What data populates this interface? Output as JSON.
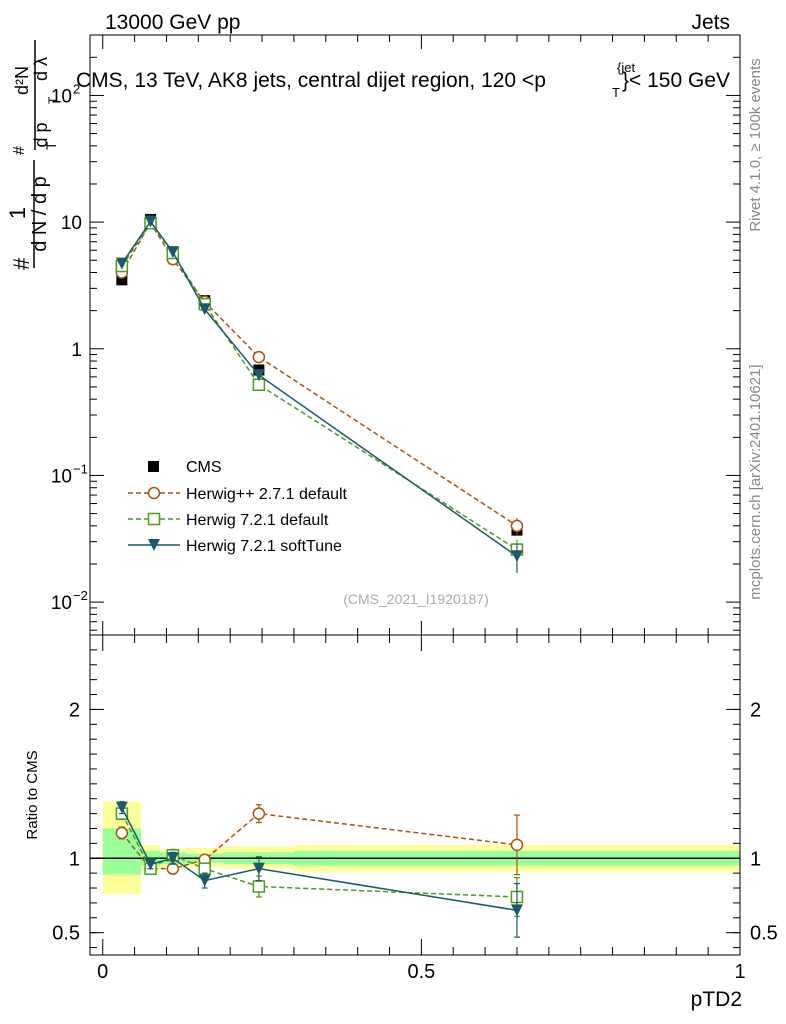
{
  "header": {
    "left": "13000 GeV pp",
    "right": "Jets"
  },
  "side": {
    "rivet": "Rivet 4.1.0, ≥ 100k events",
    "mcplots": "mcplots.cern.ch [arXiv:2401.10621]"
  },
  "chart_data": [
    {
      "type": "line",
      "panel": "main",
      "title_main": "CMS, 13 TeV, AK8 jets, central dijet region, 120 <p",
      "title_sub": "T",
      "title_sup": "{jet",
      "title_tail": "}< 150 GeV",
      "ylabel_num": "1",
      "ylabel_den": "d N / d p",
      "ylabel_d2n": "d²N",
      "ylabel_dpt": "d p",
      "ylabel_dlam": "d λ",
      "ylabel_hash": "#",
      "ylabel_T": "T",
      "yscale": "log",
      "ylim": [
        0.0055,
        300
      ],
      "xlim": [
        -0.02,
        1.0
      ],
      "yticks": [
        {
          "v": 0.01,
          "base": "10",
          "exp": "−2"
        },
        {
          "v": 0.1,
          "base": "10",
          "exp": "−1"
        },
        {
          "v": 1,
          "base": "1",
          "exp": ""
        },
        {
          "v": 10,
          "base": "10",
          "exp": ""
        },
        {
          "v": 100,
          "base": "10",
          "exp": "2"
        }
      ],
      "watermark": "(CMS_2021_I1920187)",
      "legend": [
        {
          "name": "CMS",
          "style": "data"
        },
        {
          "name": "Herwig++ 2.7.1 default",
          "style": "circle"
        },
        {
          "name": "Herwig 7.2.1 default",
          "style": "square"
        },
        {
          "name": "Herwig 7.2.1 softTune",
          "style": "triangle"
        }
      ],
      "series": [
        {
          "name": "CMS",
          "color": "#000000",
          "x": [
            0.03,
            0.075,
            0.11,
            0.16,
            0.245,
            0.65
          ],
          "values": [
            3.5,
            10.5,
            5.6,
            2.4,
            0.68,
            0.037
          ]
        },
        {
          "name": "Herwig++ 2.7.1 default",
          "color": "#a6540e",
          "dash": "5,3",
          "marker": "circle",
          "x": [
            0.03,
            0.075,
            0.11,
            0.16,
            0.245,
            0.65
          ],
          "values": [
            4.0,
            9.9,
            5.1,
            2.35,
            0.86,
            0.04
          ],
          "err": [
            0.2,
            0.3,
            0.2,
            0.1,
            0.05,
            0.006
          ]
        },
        {
          "name": "Herwig 7.2.1 default",
          "color": "#4e9a1d",
          "dash": "5,3",
          "marker": "square",
          "x": [
            0.03,
            0.075,
            0.11,
            0.16,
            0.245,
            0.65
          ],
          "values": [
            4.5,
            9.8,
            5.7,
            2.25,
            0.52,
            0.026
          ],
          "err": [
            0.2,
            0.3,
            0.2,
            0.1,
            0.04,
            0.005
          ]
        },
        {
          "name": "Herwig 7.2.1 softTune",
          "color": "#1a5a6b",
          "dash": "",
          "marker": "triangle",
          "x": [
            0.03,
            0.075,
            0.11,
            0.16,
            0.245,
            0.65
          ],
          "values": [
            4.7,
            10.1,
            5.8,
            2.05,
            0.62,
            0.023
          ],
          "err": [
            0.2,
            0.3,
            0.2,
            0.1,
            0.05,
            0.006
          ]
        }
      ]
    },
    {
      "type": "line",
      "panel": "ratio",
      "ylabel": "Ratio to CMS",
      "xlabel": "pTD2",
      "xlim": [
        -0.02,
        1.0
      ],
      "ylim": [
        0.35,
        2.5
      ],
      "xticks": [
        {
          "v": 0,
          "label": "0"
        },
        {
          "v": 0.5,
          "label": "0.5"
        },
        {
          "v": 1,
          "label": "1"
        }
      ],
      "yticks": [
        {
          "v": 0.5,
          "label": "0.5"
        },
        {
          "v": 1,
          "label": "1"
        },
        {
          "v": 2,
          "label": "2"
        }
      ],
      "bins": [
        {
          "x0": 0.0,
          "x1": 0.06,
          "y_lo": 0.76,
          "y_hi": 1.38,
          "g_lo": 0.89,
          "g_hi": 1.2
        },
        {
          "x0": 0.06,
          "x1": 0.09,
          "y_lo": 0.91,
          "y_hi": 1.09,
          "g_lo": 0.95,
          "g_hi": 1.05
        },
        {
          "x0": 0.09,
          "x1": 0.13,
          "y_lo": 0.93,
          "y_hi": 1.06,
          "g_lo": 0.96,
          "g_hi": 1.04
        },
        {
          "x0": 0.13,
          "x1": 0.19,
          "y_lo": 0.94,
          "y_hi": 1.07,
          "g_lo": 0.97,
          "g_hi": 1.03
        },
        {
          "x0": 0.19,
          "x1": 0.3,
          "y_lo": 0.93,
          "y_hi": 1.08,
          "g_lo": 0.96,
          "g_hi": 1.04
        },
        {
          "x0": 0.3,
          "x1": 1.0,
          "y_lo": 0.91,
          "y_hi": 1.09,
          "g_lo": 0.95,
          "g_hi": 1.05
        }
      ],
      "series": [
        {
          "name": "Herwig++ 2.7.1 default",
          "color": "#a6540e",
          "dash": "5,3",
          "marker": "circle",
          "x": [
            0.03,
            0.075,
            0.11,
            0.16,
            0.245,
            0.65
          ],
          "values": [
            1.17,
            0.93,
            0.93,
            0.99,
            1.3,
            1.09
          ],
          "err": [
            0.04,
            0.03,
            0.03,
            0.03,
            0.06,
            0.2
          ]
        },
        {
          "name": "Herwig 7.2.1 default",
          "color": "#4e9a1d",
          "dash": "5,3",
          "marker": "square",
          "x": [
            0.03,
            0.075,
            0.11,
            0.16,
            0.245,
            0.65
          ],
          "values": [
            1.3,
            0.93,
            1.02,
            0.93,
            0.81,
            0.74
          ],
          "err": [
            0.04,
            0.03,
            0.04,
            0.03,
            0.07,
            0.13
          ]
        },
        {
          "name": "Herwig 7.2.1 softTune",
          "color": "#1a5a6b",
          "dash": "",
          "marker": "triangle",
          "x": [
            0.03,
            0.075,
            0.11,
            0.16,
            0.245,
            0.65
          ],
          "values": [
            1.34,
            0.96,
            1.0,
            0.85,
            0.93,
            0.65
          ],
          "err": [
            0.04,
            0.03,
            0.04,
            0.05,
            0.08,
            0.18
          ]
        }
      ]
    }
  ]
}
